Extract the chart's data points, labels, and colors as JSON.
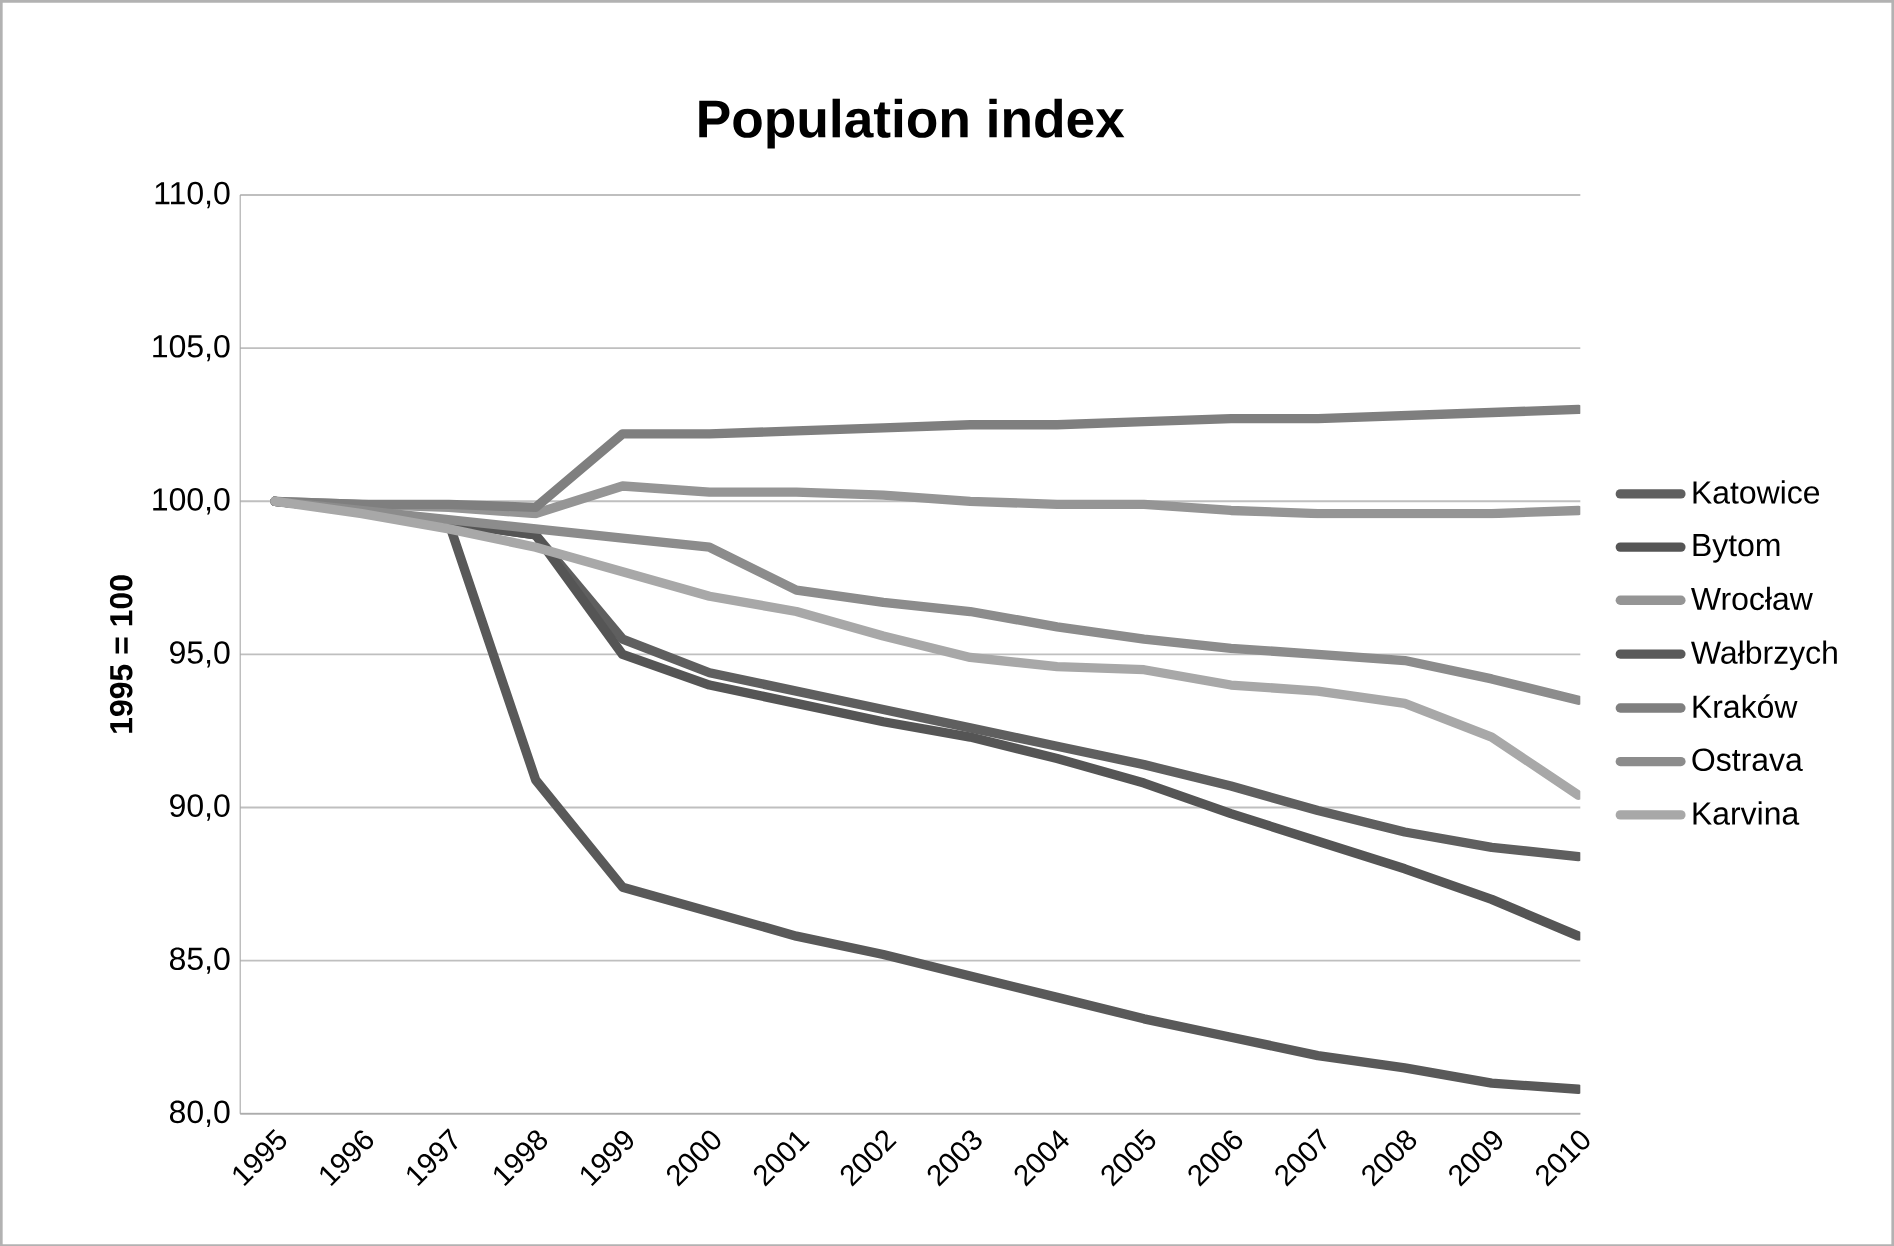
{
  "chart_data": {
    "type": "line",
    "title": "Population index",
    "ylabel": "1995 = 100",
    "categories": [
      "1995",
      "1996",
      "1997",
      "1998",
      "1999",
      "2000",
      "2001",
      "2002",
      "2003",
      "2004",
      "2005",
      "2006",
      "2007",
      "2008",
      "2009",
      "2010"
    ],
    "series": [
      {
        "name": "Katowice",
        "color": "#5f5f5f",
        "values": [
          100,
          99.7,
          99.3,
          98.9,
          95.5,
          94.4,
          93.8,
          93.2,
          92.6,
          92.0,
          91.4,
          90.7,
          89.9,
          89.2,
          88.7,
          88.4
        ]
      },
      {
        "name": "Bytom",
        "color": "#555555",
        "values": [
          100,
          99.7,
          99.3,
          98.9,
          95.0,
          94.0,
          93.4,
          92.8,
          92.3,
          91.6,
          90.8,
          89.8,
          88.9,
          88.0,
          87.0,
          85.8
        ]
      },
      {
        "name": "Wrocław",
        "color": "#959595",
        "values": [
          100,
          99.9,
          99.8,
          99.6,
          100.5,
          100.3,
          100.3,
          100.2,
          100.0,
          99.9,
          99.9,
          99.7,
          99.6,
          99.6,
          99.6,
          99.7
        ]
      },
      {
        "name": "Wałbrzych",
        "color": "#595959",
        "values": [
          100,
          99.7,
          99.3,
          90.9,
          87.4,
          86.6,
          85.8,
          85.2,
          84.5,
          83.8,
          83.1,
          82.5,
          81.9,
          81.5,
          81.0,
          80.8
        ]
      },
      {
        "name": "Kraków",
        "color": "#7f7f7f",
        "values": [
          100,
          99.9,
          99.9,
          99.8,
          102.2,
          102.2,
          102.3,
          102.4,
          102.5,
          102.5,
          102.6,
          102.7,
          102.7,
          102.8,
          102.9,
          103.0
        ]
      },
      {
        "name": "Ostrava",
        "color": "#8c8c8c",
        "values": [
          100,
          99.7,
          99.4,
          99.1,
          98.8,
          98.5,
          97.1,
          96.7,
          96.4,
          95.9,
          95.5,
          95.2,
          95.0,
          94.8,
          94.2,
          93.5
        ]
      },
      {
        "name": "Karvina",
        "color": "#a8a8a8",
        "values": [
          100,
          99.6,
          99.1,
          98.5,
          97.7,
          96.9,
          96.4,
          95.6,
          94.9,
          94.6,
          94.5,
          94.0,
          93.8,
          93.4,
          92.3,
          90.4
        ]
      }
    ],
    "ylim": [
      80,
      110
    ],
    "yticks": [
      {
        "value": 80,
        "label": "80,0"
      },
      {
        "value": 85,
        "label": "85,0"
      },
      {
        "value": 90,
        "label": "90,0"
      },
      {
        "value": 95,
        "label": "95,0"
      },
      {
        "value": 100,
        "label": "100,0"
      },
      {
        "value": 105,
        "label": "105,0"
      },
      {
        "value": 110,
        "label": "110,0"
      }
    ],
    "grid": "y",
    "legend": "right",
    "marker": "none",
    "line_style": "solid"
  }
}
